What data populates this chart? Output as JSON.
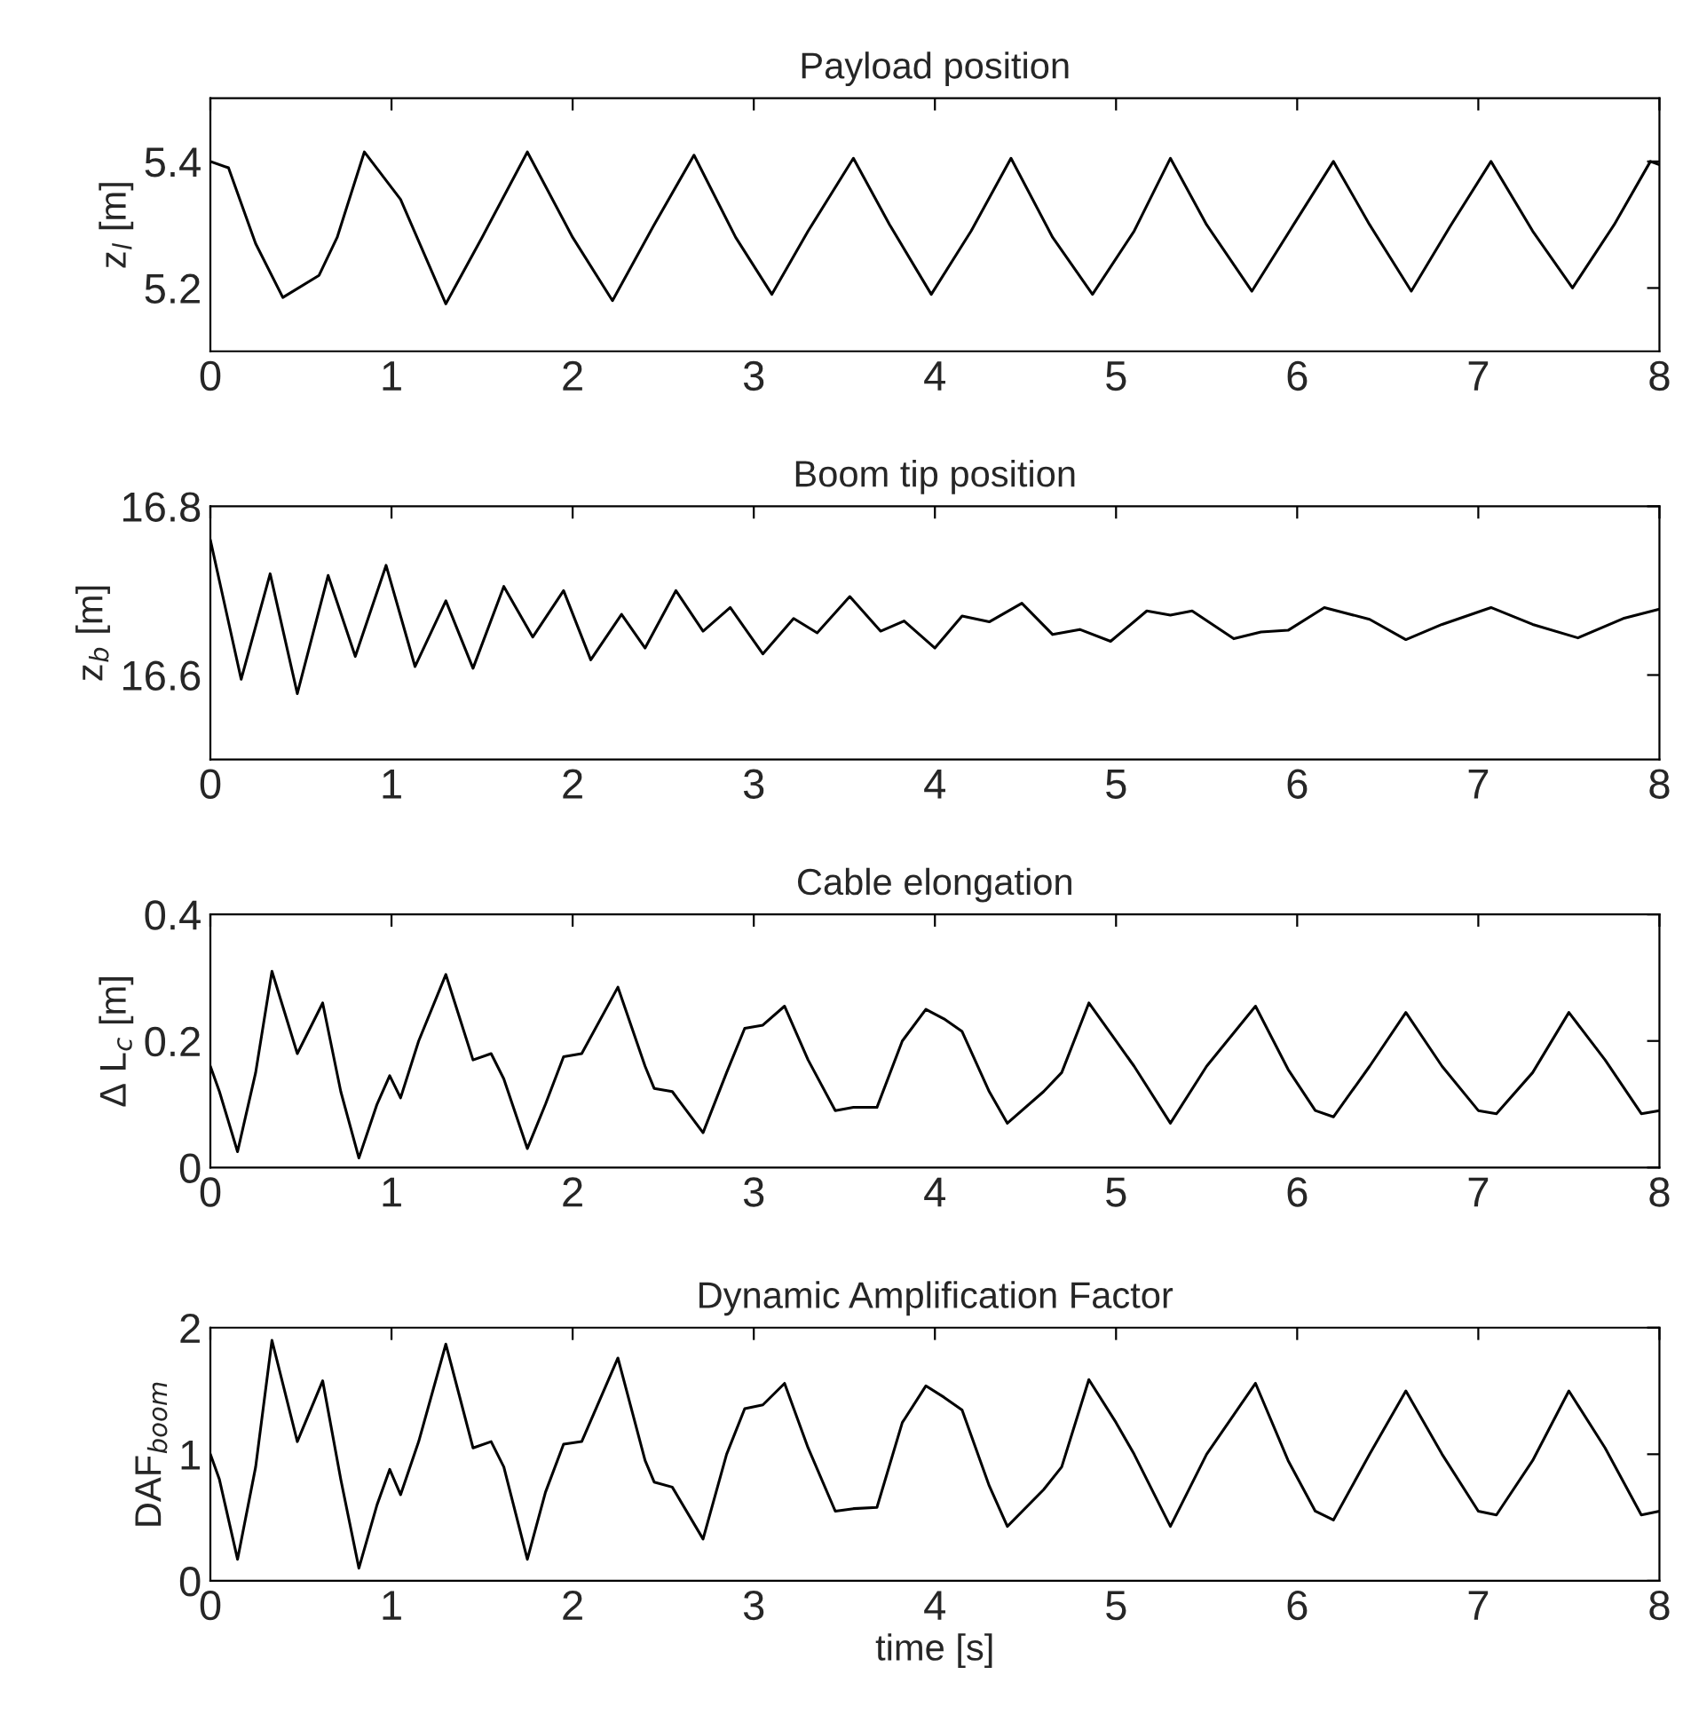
{
  "chart_data": [
    {
      "type": "line",
      "title": "Payload position",
      "ylabel": "z$_{l}$ [m]",
      "xlim": [
        0,
        8
      ],
      "xticks": [
        0,
        1,
        2,
        3,
        4,
        5,
        6,
        7,
        8
      ],
      "ylim": [
        5.1,
        5.5
      ],
      "yticks": [
        5.2,
        5.4
      ],
      "grid": false,
      "legend": false,
      "series": [
        {
          "color": "#000000",
          "x": [
            0,
            0.1,
            0.25,
            0.4,
            0.6,
            0.7,
            0.85,
            1.05,
            1.3,
            1.5,
            1.75,
            2.0,
            2.22,
            2.45,
            2.67,
            2.9,
            3.1,
            3.3,
            3.55,
            3.75,
            3.98,
            4.2,
            4.42,
            4.65,
            4.87,
            5.1,
            5.3,
            5.5,
            5.75,
            5.98,
            6.2,
            6.4,
            6.63,
            6.85,
            7.07,
            7.3,
            7.52,
            7.75,
            7.95,
            8
          ],
          "values": [
            5.4,
            5.39,
            5.27,
            5.185,
            5.22,
            5.28,
            5.415,
            5.34,
            5.175,
            5.28,
            5.415,
            5.28,
            5.18,
            5.3,
            5.41,
            5.28,
            5.19,
            5.29,
            5.405,
            5.3,
            5.19,
            5.29,
            5.405,
            5.28,
            5.19,
            5.29,
            5.405,
            5.3,
            5.195,
            5.3,
            5.4,
            5.3,
            5.195,
            5.3,
            5.4,
            5.29,
            5.2,
            5.3,
            5.4,
            5.395
          ]
        }
      ]
    },
    {
      "type": "line",
      "title": "Boom tip position",
      "ylabel": "z$_{b}$ [m]",
      "xlim": [
        0,
        8
      ],
      "xticks": [
        0,
        1,
        2,
        3,
        4,
        5,
        6,
        7,
        8
      ],
      "ylim": [
        16.5,
        16.8
      ],
      "yticks": [
        16.6,
        16.8
      ],
      "grid": false,
      "legend": false,
      "series": [
        {
          "color": "#000000",
          "x": [
            0,
            0.17,
            0.33,
            0.48,
            0.65,
            0.8,
            0.97,
            1.13,
            1.3,
            1.45,
            1.62,
            1.78,
            1.95,
            2.1,
            2.27,
            2.4,
            2.57,
            2.72,
            2.87,
            3.05,
            3.22,
            3.35,
            3.53,
            3.7,
            3.83,
            4.0,
            4.15,
            4.3,
            4.48,
            4.65,
            4.8,
            4.97,
            5.17,
            5.3,
            5.42,
            5.65,
            5.8,
            5.95,
            6.15,
            6.4,
            6.6,
            6.8,
            7.07,
            7.3,
            7.55,
            7.8,
            8.0
          ],
          "values": [
            16.76,
            16.595,
            16.72,
            16.578,
            16.718,
            16.622,
            16.73,
            16.61,
            16.688,
            16.608,
            16.705,
            16.645,
            16.7,
            16.618,
            16.672,
            16.632,
            16.7,
            16.652,
            16.68,
            16.625,
            16.667,
            16.65,
            16.693,
            16.652,
            16.664,
            16.632,
            16.67,
            16.663,
            16.685,
            16.648,
            16.654,
            16.64,
            16.676,
            16.671,
            16.676,
            16.643,
            16.651,
            16.653,
            16.68,
            16.666,
            16.642,
            16.66,
            16.68,
            16.66,
            16.644,
            16.667,
            16.678
          ]
        }
      ]
    },
    {
      "type": "line",
      "title": "Cable elongation",
      "ylabel": "Δ L$_{c}$ [m]",
      "xlim": [
        0,
        8
      ],
      "xticks": [
        0,
        1,
        2,
        3,
        4,
        5,
        6,
        7,
        8
      ],
      "ylim": [
        0,
        0.4
      ],
      "yticks": [
        0,
        0.2,
        0.4
      ],
      "grid": false,
      "legend": false,
      "series": [
        {
          "color": "#000000",
          "x": [
            0,
            0.05,
            0.15,
            0.25,
            0.34,
            0.48,
            0.62,
            0.72,
            0.82,
            0.92,
            0.99,
            1.05,
            1.15,
            1.3,
            1.45,
            1.55,
            1.62,
            1.75,
            1.85,
            1.95,
            2.05,
            2.25,
            2.4,
            2.45,
            2.55,
            2.72,
            2.85,
            2.95,
            3.05,
            3.17,
            3.3,
            3.45,
            3.55,
            3.68,
            3.82,
            3.95,
            4.05,
            4.15,
            4.3,
            4.4,
            4.6,
            4.7,
            4.85,
            5.0,
            5.1,
            5.3,
            5.5,
            5.77,
            5.95,
            6.1,
            6.2,
            6.4,
            6.6,
            6.8,
            7.0,
            7.1,
            7.3,
            7.5,
            7.7,
            7.9,
            8
          ],
          "values": [
            0.16,
            0.12,
            0.025,
            0.15,
            0.31,
            0.18,
            0.26,
            0.12,
            0.015,
            0.1,
            0.145,
            0.11,
            0.2,
            0.305,
            0.17,
            0.18,
            0.14,
            0.03,
            0.1,
            0.175,
            0.18,
            0.285,
            0.16,
            0.125,
            0.12,
            0.055,
            0.15,
            0.22,
            0.225,
            0.255,
            0.17,
            0.09,
            0.095,
            0.095,
            0.2,
            0.25,
            0.235,
            0.215,
            0.12,
            0.07,
            0.12,
            0.15,
            0.26,
            0.2,
            0.16,
            0.07,
            0.16,
            0.255,
            0.155,
            0.09,
            0.08,
            0.16,
            0.245,
            0.16,
            0.09,
            0.085,
            0.15,
            0.245,
            0.17,
            0.085,
            0.09
          ]
        }
      ]
    },
    {
      "type": "line",
      "title": "Dynamic Amplification Factor",
      "ylabel": "DAF$_{boom}$",
      "xlabel": "time [s]",
      "xlim": [
        0,
        8
      ],
      "xticks": [
        0,
        1,
        2,
        3,
        4,
        5,
        6,
        7,
        8
      ],
      "ylim": [
        0,
        2
      ],
      "yticks": [
        0,
        1,
        2
      ],
      "grid": false,
      "legend": false,
      "series": [
        {
          "color": "#000000",
          "x": [
            0,
            0.05,
            0.15,
            0.25,
            0.34,
            0.48,
            0.62,
            0.72,
            0.82,
            0.92,
            0.99,
            1.05,
            1.15,
            1.3,
            1.45,
            1.55,
            1.62,
            1.75,
            1.85,
            1.95,
            2.05,
            2.25,
            2.4,
            2.45,
            2.55,
            2.72,
            2.85,
            2.95,
            3.05,
            3.17,
            3.3,
            3.45,
            3.55,
            3.68,
            3.82,
            3.95,
            4.05,
            4.15,
            4.3,
            4.4,
            4.6,
            4.7,
            4.85,
            5.0,
            5.1,
            5.3,
            5.5,
            5.77,
            5.95,
            6.1,
            6.2,
            6.4,
            6.6,
            6.8,
            7.0,
            7.1,
            7.3,
            7.5,
            7.7,
            7.9,
            8
          ],
          "values": [
            1.0,
            0.8,
            0.17,
            0.9,
            1.9,
            1.1,
            1.58,
            0.8,
            0.1,
            0.6,
            0.88,
            0.68,
            1.1,
            1.87,
            1.05,
            1.1,
            0.9,
            0.17,
            0.7,
            1.08,
            1.1,
            1.76,
            0.95,
            0.78,
            0.74,
            0.33,
            1.0,
            1.36,
            1.39,
            1.56,
            1.05,
            0.55,
            0.57,
            0.58,
            1.25,
            1.54,
            1.45,
            1.35,
            0.75,
            0.43,
            0.72,
            0.9,
            1.59,
            1.25,
            1.0,
            0.43,
            1.0,
            1.56,
            0.95,
            0.55,
            0.48,
            1.0,
            1.5,
            1.0,
            0.55,
            0.52,
            0.95,
            1.5,
            1.05,
            0.52,
            0.55
          ]
        }
      ]
    }
  ]
}
